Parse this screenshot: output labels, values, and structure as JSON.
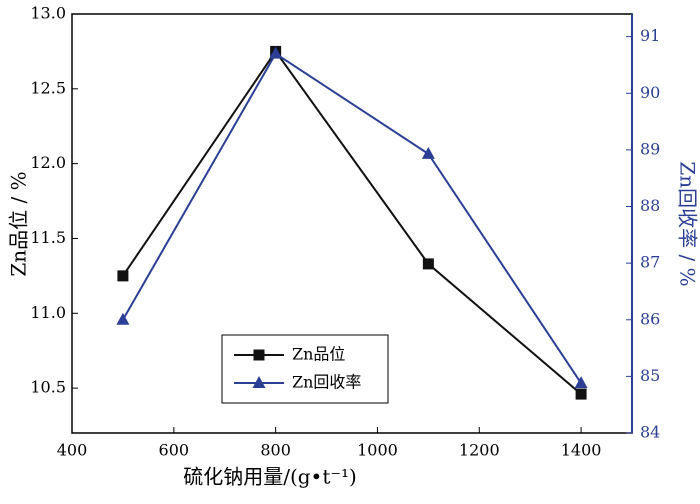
{
  "chart_data": {
    "type": "line",
    "x": [
      500,
      800,
      1100,
      1400
    ],
    "xlabel": "硫化钠用量/(g•t⁻¹)",
    "ylabel": "Zn品位 / %",
    "y2label": "Zn回收率 / %",
    "xlim": [
      400,
      1500
    ],
    "xticks": [
      400,
      600,
      800,
      1000,
      1200,
      1400
    ],
    "ylim": [
      10.2,
      13.0
    ],
    "yticks": [
      10.5,
      {
        "value": 11,
        "label": "11.0"
      },
      11.5,
      {
        "value": 12,
        "label": "12.0"
      },
      12.5,
      {
        "value": 13,
        "label": "13.0"
      }
    ],
    "y2lim": [
      84,
      91.4
    ],
    "y2ticks": [
      84,
      85,
      86,
      87,
      88,
      89,
      90,
      91
    ],
    "y2color": "#2b3f94",
    "legend": "lower-center",
    "series": [
      {
        "name": "Zn品位",
        "color": "#111111",
        "marker": "square",
        "values": [
          11.25,
          12.75,
          11.33,
          10.46
        ]
      },
      {
        "name": "Zn回收率",
        "color": "#2b3f94",
        "marker": "triangle",
        "axis": "y2",
        "values": [
          86.0,
          90.7,
          88.93,
          84.88
        ]
      }
    ]
  }
}
